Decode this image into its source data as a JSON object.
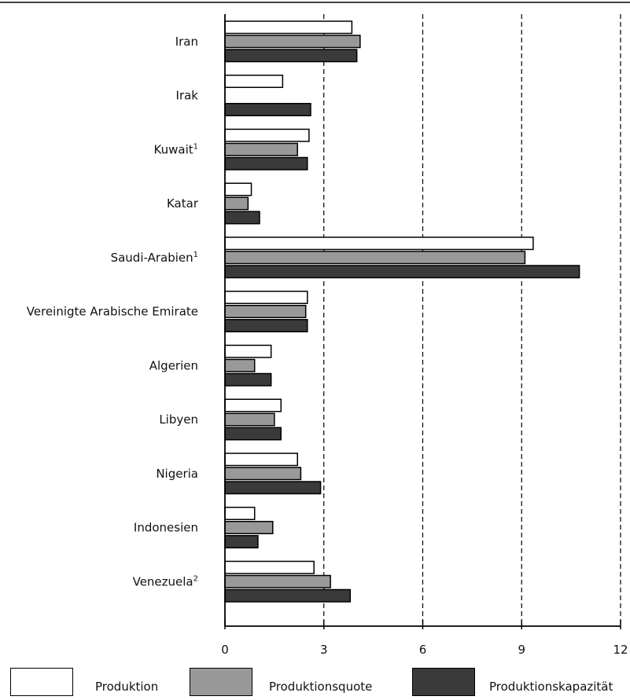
{
  "chart_data": {
    "type": "bar",
    "orientation": "horizontal",
    "categories": [
      {
        "name": "Iran",
        "sup": ""
      },
      {
        "name": "Irak",
        "sup": ""
      },
      {
        "name": "Kuwait",
        "sup": "1"
      },
      {
        "name": "Katar",
        "sup": ""
      },
      {
        "name": "Saudi-Arabien",
        "sup": "1"
      },
      {
        "name": "Vereinigte Arabische Emirate",
        "sup": ""
      },
      {
        "name": "Algerien",
        "sup": ""
      },
      {
        "name": "Libyen",
        "sup": ""
      },
      {
        "name": "Nigeria",
        "sup": ""
      },
      {
        "name": "Indonesien",
        "sup": ""
      },
      {
        "name": "Venezuela",
        "sup": "2"
      }
    ],
    "series": [
      {
        "name": "Produktion",
        "color": "#ffffff",
        "values": [
          3.85,
          1.75,
          2.55,
          0.8,
          9.35,
          2.5,
          1.4,
          1.7,
          2.2,
          0.9,
          2.7
        ]
      },
      {
        "name": "Produktionsquote",
        "color": "#999999",
        "values": [
          4.1,
          null,
          2.2,
          0.7,
          9.1,
          2.45,
          0.9,
          1.5,
          2.3,
          1.45,
          3.2
        ]
      },
      {
        "name": "Produktionskapazität",
        "color": "#3a3a3a",
        "values": [
          4.0,
          2.6,
          2.5,
          1.05,
          10.75,
          2.5,
          1.4,
          1.7,
          2.9,
          1.0,
          3.8
        ]
      }
    ],
    "xticks": [
      "0",
      "3",
      "6",
      "9",
      "12"
    ],
    "xlim": [
      0,
      12
    ],
    "grid": "vertical dashed at 3, 6, 9, 12",
    "legend_position": "bottom"
  }
}
